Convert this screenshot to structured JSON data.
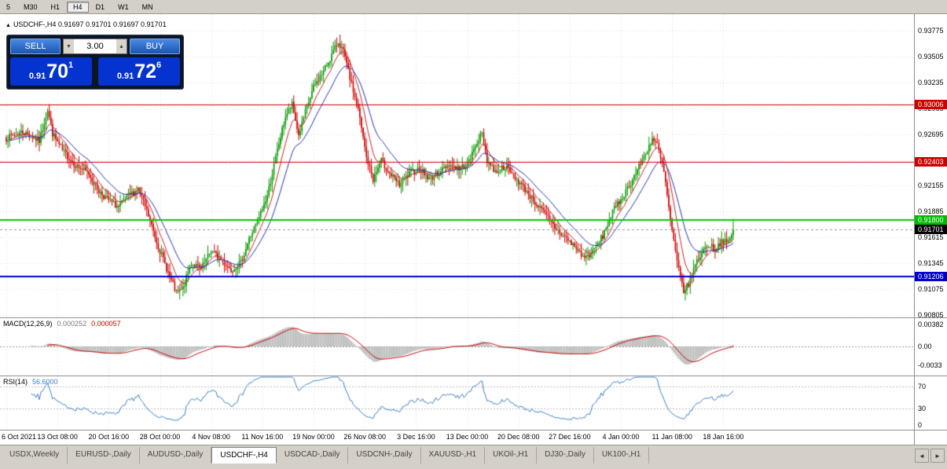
{
  "toolbar": {
    "timeframes": [
      "5",
      "M30",
      "H1",
      "H4",
      "D1",
      "W1",
      "MN"
    ],
    "active": "H4"
  },
  "chart": {
    "arrow_icon": "▲",
    "ohlc_line": "USDCHF-,H4 0.91697 0.91701 0.91697 0.91701"
  },
  "trade_panel": {
    "sell_label": "SELL",
    "buy_label": "BUY",
    "lot": "3.00",
    "lot_decrease_icon": "▼",
    "lot_increase_icon": "▲",
    "sell_price": {
      "prefix": "0.91",
      "big": "70",
      "sup": "1"
    },
    "buy_price": {
      "prefix": "0.91",
      "big": "72",
      "sup": "6"
    }
  },
  "price_axis": {
    "badges": [
      {
        "text": "0.93006",
        "value": 0.93006,
        "bg": "#cc0000",
        "name": "resistance-price-badge"
      },
      {
        "text": "0.92403",
        "value": 0.92403,
        "bg": "#cc0000",
        "name": "resistance-price-badge"
      },
      {
        "text": "0.91800",
        "value": 0.918,
        "bg": "#00bb00",
        "name": "support-price-badge"
      },
      {
        "text": "0.91701",
        "value": 0.91701,
        "bg": "#000000",
        "name": "current-price-badge"
      },
      {
        "text": "0.91206",
        "value": 0.91206,
        "bg": "#0000cc",
        "name": "support-price-badge"
      }
    ]
  },
  "macd_panel": {
    "title": "MACD(12,26,9)",
    "value_main": "0.000252",
    "value_signal": "0.000057",
    "scale_labels": [
      {
        "text": "0.00382",
        "value": 0.00382
      },
      {
        "text": "0.00",
        "value": 0
      },
      {
        "text": "-0.0033",
        "value": -0.0033
      }
    ]
  },
  "rsi_panel": {
    "title": "RSI(14)",
    "value": "56.6000",
    "scale_labels": [
      {
        "text": "70",
        "value": 70
      },
      {
        "text": "30",
        "value": 30
      },
      {
        "text": "0",
        "value": 0
      }
    ]
  },
  "tabs": {
    "items": [
      "USDX,Weekly",
      "EURUSD-,Daily",
      "AUDUSD-,Daily",
      "USDCHF-,H4",
      "USDCAD-,Daily",
      "USDCNH-,Daily",
      "XAUUSD-,H1",
      "UKOil-,H1",
      "DJ30-,Daily",
      "UK100-,H1"
    ],
    "active_index": 3,
    "scroll_left_icon": "◄",
    "scroll_right_icon": "►"
  },
  "chart_data": {
    "type": "candlestick",
    "symbol": "USDCHF-",
    "timeframe": "H4",
    "ohlc": {
      "open": "0.91697",
      "high": "0.91701",
      "low": "0.91697",
      "close": "0.91701"
    },
    "current_price": 0.91701,
    "axis": {
      "price_max": 0.93947,
      "price_min": 0.9078,
      "price_ticks": [
        "0.93775",
        "0.93505",
        "0.93235",
        "0.92965",
        "0.92695",
        "0.92425",
        "0.92155",
        "0.91885",
        "0.91615",
        "0.91345",
        "0.91075",
        "0.90805"
      ]
    },
    "n_candles": 441,
    "close_waypoints": [
      [
        0,
        0.9265
      ],
      [
        10,
        0.9272
      ],
      [
        20,
        0.9262
      ],
      [
        25,
        0.9295
      ],
      [
        28,
        0.927
      ],
      [
        34,
        0.9252
      ],
      [
        42,
        0.9237
      ],
      [
        50,
        0.9228
      ],
      [
        56,
        0.921
      ],
      [
        62,
        0.92
      ],
      [
        68,
        0.9193
      ],
      [
        74,
        0.9205
      ],
      [
        80,
        0.9212
      ],
      [
        86,
        0.9184
      ],
      [
        92,
        0.9152
      ],
      [
        98,
        0.9125
      ],
      [
        103,
        0.9103
      ],
      [
        107,
        0.9108
      ],
      [
        112,
        0.9135
      ],
      [
        118,
        0.9128
      ],
      [
        124,
        0.9148
      ],
      [
        130,
        0.9138
      ],
      [
        136,
        0.9128
      ],
      [
        142,
        0.9135
      ],
      [
        147,
        0.916
      ],
      [
        152,
        0.9178
      ],
      [
        158,
        0.9205
      ],
      [
        164,
        0.9252
      ],
      [
        169,
        0.9288
      ],
      [
        173,
        0.93
      ],
      [
        177,
        0.9268
      ],
      [
        181,
        0.9292
      ],
      [
        186,
        0.9318
      ],
      [
        192,
        0.9335
      ],
      [
        197,
        0.9352
      ],
      [
        201,
        0.9366
      ],
      [
        204,
        0.9355
      ],
      [
        208,
        0.9328
      ],
      [
        213,
        0.9295
      ],
      [
        218,
        0.9245
      ],
      [
        222,
        0.9222
      ],
      [
        227,
        0.9242
      ],
      [
        232,
        0.9228
      ],
      [
        238,
        0.9216
      ],
      [
        244,
        0.9228
      ],
      [
        250,
        0.9234
      ],
      [
        256,
        0.9222
      ],
      [
        262,
        0.923
      ],
      [
        268,
        0.9238
      ],
      [
        274,
        0.9233
      ],
      [
        280,
        0.924
      ],
      [
        285,
        0.9262
      ],
      [
        288,
        0.927
      ],
      [
        291,
        0.9242
      ],
      [
        296,
        0.923
      ],
      [
        302,
        0.9236
      ],
      [
        308,
        0.9224
      ],
      [
        314,
        0.9212
      ],
      [
        320,
        0.9198
      ],
      [
        326,
        0.9186
      ],
      [
        332,
        0.9172
      ],
      [
        338,
        0.9162
      ],
      [
        344,
        0.9152
      ],
      [
        350,
        0.914
      ],
      [
        355,
        0.9146
      ],
      [
        361,
        0.9163
      ],
      [
        367,
        0.9188
      ],
      [
        373,
        0.9204
      ],
      [
        379,
        0.9222
      ],
      [
        385,
        0.9242
      ],
      [
        391,
        0.9265
      ],
      [
        394,
        0.9258
      ],
      [
        398,
        0.923
      ],
      [
        402,
        0.918
      ],
      [
        406,
        0.9135
      ],
      [
        410,
        0.9106
      ],
      [
        413,
        0.9112
      ],
      [
        417,
        0.9133
      ],
      [
        421,
        0.9146
      ],
      [
        425,
        0.9154
      ],
      [
        429,
        0.9149
      ],
      [
        433,
        0.9158
      ],
      [
        437,
        0.9155
      ],
      [
        440,
        0.91701
      ]
    ],
    "hlines": [
      {
        "price": 0.93006,
        "color": "#cc0000",
        "width": 1
      },
      {
        "price": 0.92403,
        "color": "#cc0000",
        "width": 1
      },
      {
        "price": 0.918,
        "color": "#00cc00",
        "width": 2
      },
      {
        "price": 0.91206,
        "color": "#0000cc",
        "width": 2
      }
    ],
    "moving_averages": [
      {
        "period": 9,
        "color": "#cc2222"
      },
      {
        "period": 21,
        "color": "#2233bb"
      }
    ],
    "up_color": "#089800",
    "down_color": "#d40000",
    "indicators": [
      {
        "name": "MACD",
        "params": "12,26,9",
        "value_main": 0.000252,
        "value_signal": 5.7e-05,
        "scale_max": 0.00382,
        "scale_min": -0.0033
      },
      {
        "name": "RSI",
        "params": "14",
        "value": 56.6,
        "levels": [
          70,
          30,
          0
        ]
      }
    ],
    "time_ticks": [
      "6 Oct 2021",
      "13 Oct 08:00",
      "20 Oct 16:00",
      "28 Oct 00:00",
      "4 Nov 08:00",
      "11 Nov 16:00",
      "19 Nov 00:00",
      "26 Nov 08:00",
      "3 Dec 16:00",
      "13 Dec 00:00",
      "20 Dec 08:00",
      "27 Dec 16:00",
      "4 Jan 00:00",
      "11 Jan 08:00",
      "18 Jan 16:00"
    ]
  }
}
